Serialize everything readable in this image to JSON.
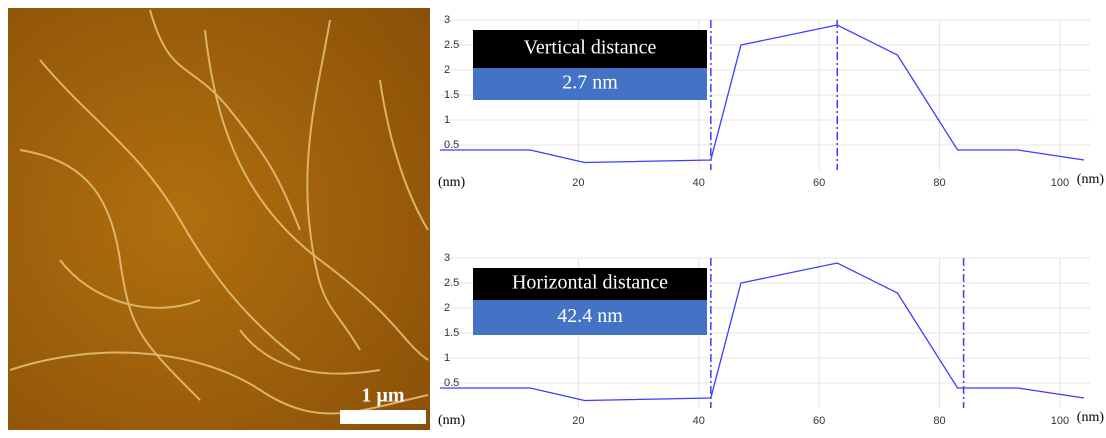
{
  "image": {
    "scale_label": "1 µm"
  },
  "chart_data": [
    {
      "type": "line",
      "annotation_title": "Vertical distance",
      "annotation_value": "2.7 nm",
      "y_unit": "(nm)",
      "x_unit": "(nm)",
      "x": [
        -3,
        12,
        21,
        42,
        47,
        63,
        73,
        83,
        93,
        104
      ],
      "series": [
        {
          "color": "#3c3cff",
          "values": [
            0.4,
            0.4,
            0.15,
            0.2,
            2.5,
            2.9,
            2.3,
            0.4,
            0.4,
            0.2
          ]
        }
      ],
      "cursors": [
        42,
        63
      ],
      "xlim": [
        -3,
        105
      ],
      "ylim": [
        0,
        3
      ],
      "xticks": [
        20,
        40,
        60,
        80,
        100
      ],
      "yticks": [
        0.5,
        1,
        1.5,
        2,
        2.5,
        3
      ],
      "grid": true
    },
    {
      "type": "line",
      "annotation_title": "Horizontal distance",
      "annotation_value": "42.4 nm",
      "y_unit": "(nm)",
      "x_unit": "(nm)",
      "x": [
        -3,
        12,
        21,
        42,
        47,
        63,
        73,
        83,
        93,
        104
      ],
      "series": [
        {
          "color": "#3c3cff",
          "values": [
            0.4,
            0.4,
            0.15,
            0.2,
            2.5,
            2.9,
            2.3,
            0.4,
            0.4,
            0.2
          ]
        }
      ],
      "cursors": [
        42,
        84
      ],
      "xlim": [
        -3,
        105
      ],
      "ylim": [
        0,
        3
      ],
      "xticks": [
        20,
        40,
        60,
        80,
        100
      ],
      "yticks": [
        0.5,
        1,
        1.5,
        2,
        2.5,
        3
      ],
      "grid": true
    }
  ]
}
